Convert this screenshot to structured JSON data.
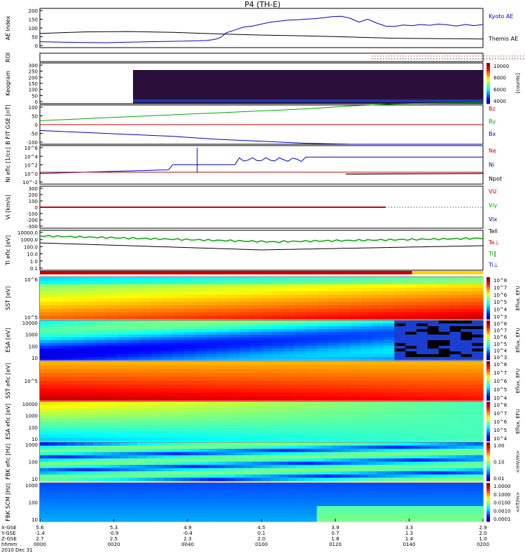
{
  "title": "P4 (TH-E)",
  "colors": {
    "blue": "#0000cc",
    "red": "#cc0000",
    "green": "#00aa00",
    "black": "#000000",
    "grid": "#000000"
  },
  "chart_data": [
    {
      "type": "line",
      "ylabel": "AE Index",
      "yticks": [
        "200",
        "150",
        "100",
        "50",
        "0"
      ],
      "ylim": [
        0,
        200
      ],
      "series": [
        {
          "name": "Kyoto AE",
          "color": "#0000cc",
          "x": [
            0,
            10,
            20,
            30,
            40,
            50,
            60,
            65,
            70,
            75,
            78,
            80,
            82,
            84,
            88,
            92,
            96,
            100,
            104,
            108,
            112,
            116,
            120,
            124,
            128,
            132,
            136,
            140,
            144,
            148,
            152,
            156,
            160,
            164,
            168,
            172,
            176,
            180,
            184,
            188,
            192,
            196,
            200
          ],
          "values": [
            30,
            28,
            26,
            25,
            28,
            30,
            32,
            33,
            35,
            36,
            40,
            45,
            55,
            75,
            90,
            105,
            110,
            120,
            130,
            135,
            140,
            142,
            145,
            148,
            152,
            158,
            160,
            150,
            130,
            145,
            125,
            110,
            108,
            115,
            112,
            118,
            114,
            120,
            116,
            110,
            118,
            112,
            118
          ]
        },
        {
          "name": "Themis AE",
          "color": "#000000",
          "x": [
            0,
            20,
            40,
            60,
            80,
            100,
            120,
            140,
            160,
            180,
            200
          ],
          "values": [
            72,
            80,
            82,
            78,
            70,
            64,
            60,
            54,
            48,
            46,
            44
          ]
        }
      ]
    },
    {
      "type": "table",
      "ylabel": "ROI"
    },
    {
      "type": "heatmap",
      "ylabel": "Keogram",
      "yticks": [
        "300",
        "250",
        "200",
        "150",
        "100",
        "50",
        "0"
      ],
      "colorbar": [
        "10000",
        "8000",
        "6000",
        "4000"
      ],
      "colorbar_label": "[counts]"
    },
    {
      "type": "line",
      "ylabel": "B FIT GSE [nT]",
      "yticks": [
        "100",
        "50",
        "0",
        "-50",
        "-100"
      ],
      "ylim": [
        -100,
        100
      ],
      "series": [
        {
          "name": "Bz",
          "color": "#cc0000",
          "x": [
            0,
            200
          ],
          "values": [
            0,
            0
          ]
        },
        {
          "name": "By",
          "color": "#00aa00",
          "x": [
            0,
            20,
            40,
            60,
            80,
            100,
            120,
            140,
            160,
            180,
            200
          ],
          "values": [
            20,
            30,
            40,
            50,
            60,
            70,
            80,
            95,
            105,
            110,
            112
          ]
        },
        {
          "name": "Bx",
          "color": "#0000cc",
          "x": [
            0,
            20,
            40,
            60,
            80,
            100,
            120,
            140,
            160,
            180,
            200
          ],
          "values": [
            -30,
            -40,
            -50,
            -60,
            -75,
            -85,
            -95,
            -100,
            -100,
            -100,
            -100
          ]
        }
      ]
    },
    {
      "type": "line",
      "ylabel": "Ni eflc [1/cc]",
      "yticks": [
        "10^6",
        "10^4",
        "10^2",
        "10^0",
        "10^-2"
      ],
      "series": [
        {
          "name": "Ne",
          "color": "#cc0000"
        },
        {
          "name": "Ni",
          "color": "#0000cc"
        },
        {
          "name": "Npot",
          "color": "#000000"
        }
      ]
    },
    {
      "type": "line",
      "ylabel": "Vi [km/s]",
      "yticks": [
        "300",
        "200",
        "100",
        "0",
        "-100",
        "-200",
        "-300"
      ],
      "ylim": [
        -300,
        300
      ],
      "series": [
        {
          "name": "Viz",
          "color": "#cc0000"
        },
        {
          "name": "Viy",
          "color": "#00aa00"
        },
        {
          "name": "Vix",
          "color": "#0000cc"
        }
      ]
    },
    {
      "type": "line",
      "ylabel": "Ti eflc [eV]",
      "yticks": [
        "10000.0",
        "1000.0",
        "100.0",
        "10.0",
        "1.0",
        "0.1"
      ],
      "series": [
        {
          "name": "Tell",
          "color": "#000000"
        },
        {
          "name": "Te⊥",
          "color": "#cc0000"
        },
        {
          "name": "Ti‖",
          "color": "#00aa00"
        },
        {
          "name": "Ti⊥",
          "color": "#0000cc"
        }
      ]
    },
    {
      "type": "heatmap",
      "ylabel": "SST [eV]",
      "yticks": [
        "10^6",
        "10^5"
      ],
      "colorbar": [
        "10^8",
        "10^7",
        "10^6",
        "10^5",
        "10^4",
        "10^3"
      ],
      "colorbar_label": "Eflux, EFU"
    },
    {
      "type": "heatmap",
      "ylabel": "ESA [eV]",
      "yticks": [
        "10000",
        "1000",
        "100",
        "10"
      ],
      "colorbar": [
        "10^8",
        "10^7",
        "10^6",
        "10^5",
        "10^4",
        "10^3"
      ],
      "colorbar_label": "Eflux, EFU"
    },
    {
      "type": "heatmap",
      "ylabel": "SST eflc [eV]",
      "yticks": [
        "10^5"
      ],
      "colorbar": [
        "10^8",
        "10^7",
        "10^6",
        "10^5",
        "10^4"
      ],
      "colorbar_label": "Eflux, EFU"
    },
    {
      "type": "heatmap",
      "ylabel": "ESA eflc [eV]",
      "yticks": [
        "10000",
        "1000",
        "100",
        "10"
      ],
      "colorbar": [
        "10^8",
        "10^7",
        "10^6",
        "10^5",
        "10^4"
      ],
      "colorbar_label": "Eflux, EFU"
    },
    {
      "type": "heatmap",
      "ylabel": "FBK eflc [Hz]",
      "yticks": [
        "1000",
        "100",
        "10"
      ],
      "colorbar": [
        "1.00",
        "0.10",
        "0.01"
      ],
      "colorbar_label": "<mV/m>"
    },
    {
      "type": "heatmap",
      "ylabel": "FBK SCM [Hz]",
      "yticks": [
        "1000",
        "100",
        "10"
      ],
      "colorbar": [
        "1.0000",
        "0.1000",
        "0.0100",
        "0.0010",
        "0.0001"
      ],
      "colorbar_label": "<nT/m>"
    }
  ],
  "xaxis": {
    "row_labels": [
      "X-GSE",
      "Y-GSE",
      "Z-GSE",
      "hhmm",
      "2010 Dec 31"
    ],
    "columns": [
      {
        "x": "5.6",
        "y": "-1.4",
        "z": "2.7",
        "t": "0000"
      },
      {
        "x": "5.3",
        "y": "-0.9",
        "z": "2.5",
        "t": "0020"
      },
      {
        "x": "4.9",
        "y": "-0.4",
        "z": "2.3",
        "t": "0040"
      },
      {
        "x": "4.5",
        "y": "0.1",
        "z": "2.0",
        "t": "0100"
      },
      {
        "x": "3.9",
        "y": "0.7",
        "z": "1.8",
        "t": "0120"
      },
      {
        "x": "3.3",
        "y": "1.3",
        "z": "1.4",
        "t": "0140"
      },
      {
        "x": "2.9",
        "y": "2.0",
        "z": "1.0",
        "t": "0200"
      }
    ]
  }
}
